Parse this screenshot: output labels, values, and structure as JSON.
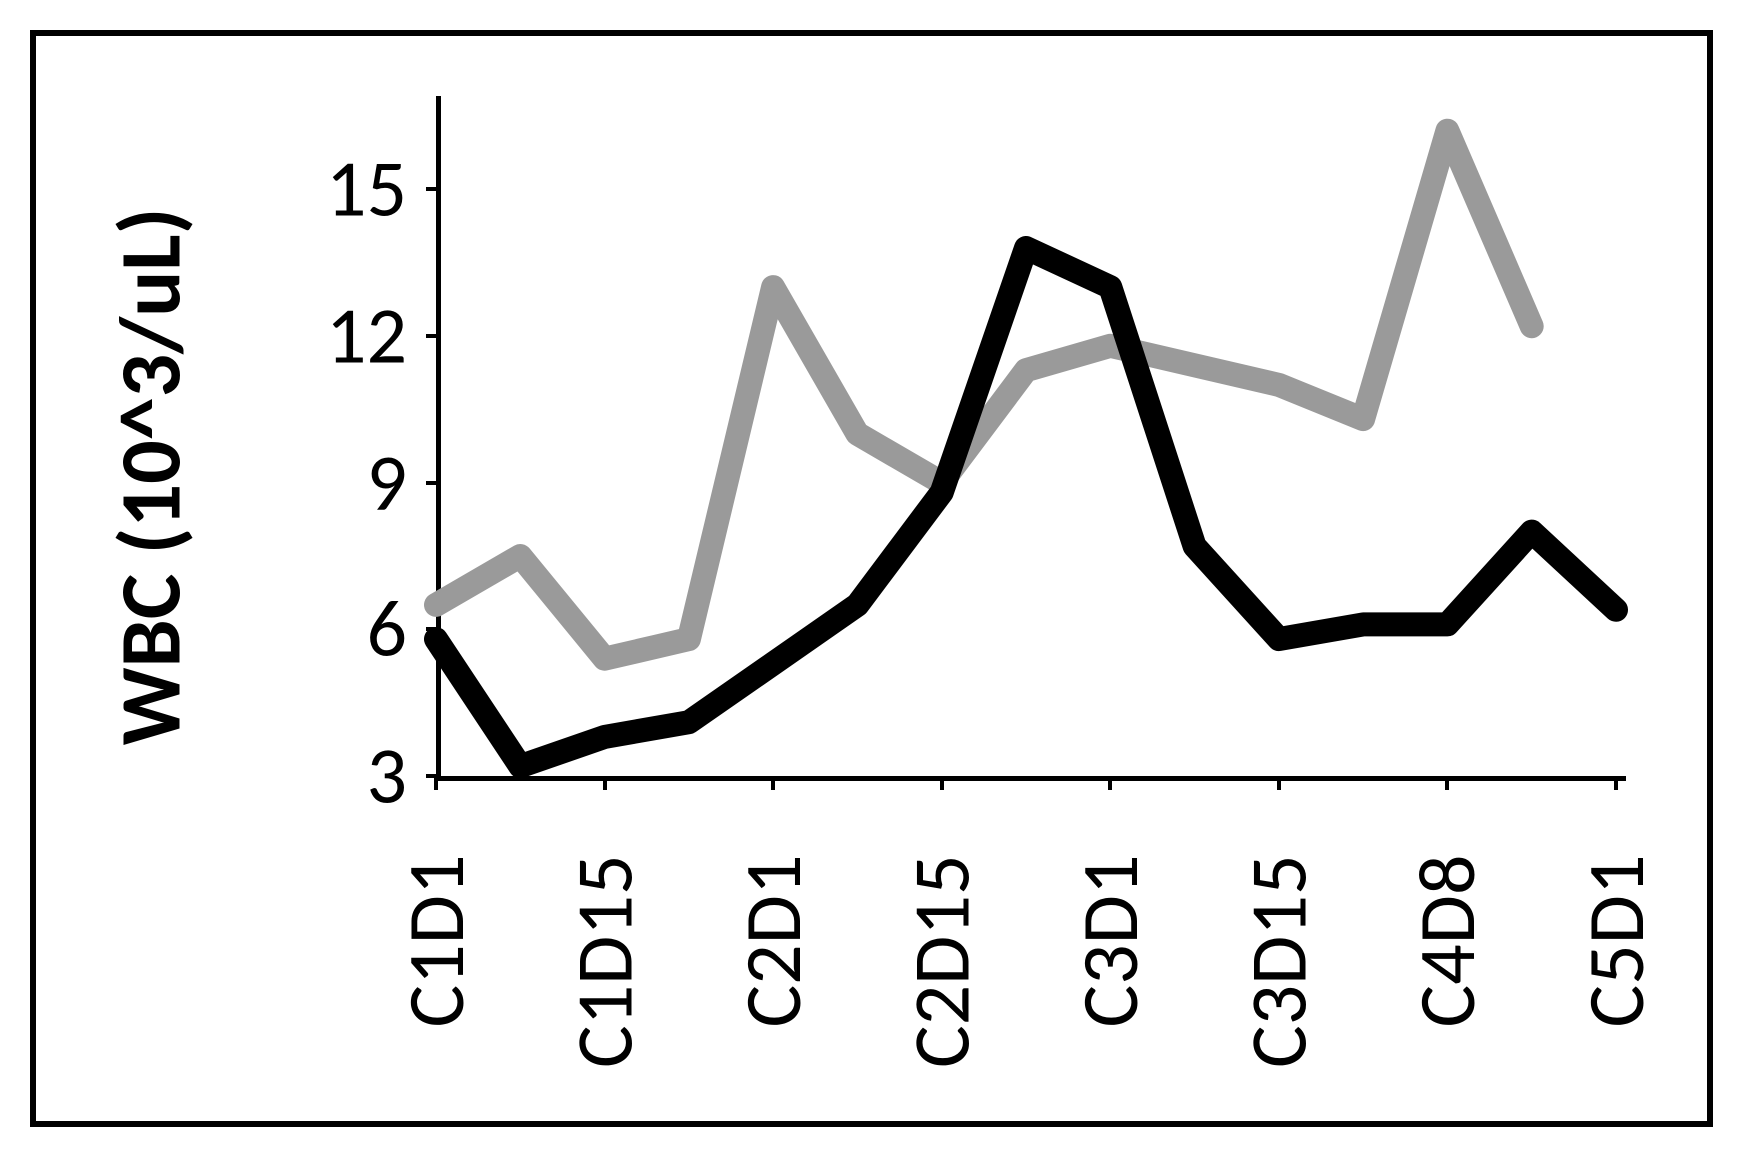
{
  "chart": {
    "type": "line",
    "y_axis": {
      "title": "WBC (10^3/uL)",
      "title_fontsize": 86,
      "title_fontweight": 700,
      "min": 3,
      "max": 16.5,
      "ticks": [
        3,
        6,
        9,
        12,
        15
      ],
      "tick_fontsize": 80
    },
    "x_axis": {
      "categories": [
        "C1D1",
        "",
        "C1D15",
        "",
        "C2D1",
        "",
        "C2D15",
        "",
        "C3D1",
        "",
        "C3D15",
        "",
        "C4D8",
        "",
        "C5D1"
      ],
      "visible_labels": [
        "C1D1",
        "C1D15",
        "C2D1",
        "C2D15",
        "C3D1",
        "C3D15",
        "C4D8",
        "C5D1"
      ],
      "tick_fontsize": 80,
      "label_rotation": -90
    },
    "series": [
      {
        "name": "series-black",
        "color": "#000000",
        "line_width": 24,
        "values": [
          5.8,
          3.2,
          3.8,
          4.1,
          5.3,
          6.5,
          8.8,
          13.8,
          13.0,
          7.7,
          5.8,
          6.1,
          6.1,
          8.0,
          6.4
        ]
      },
      {
        "name": "series-gray",
        "color": "#9a9a9a",
        "line_width": 24,
        "values": [
          6.5,
          7.5,
          5.4,
          5.8,
          13.0,
          10.0,
          9.0,
          11.3,
          11.8,
          11.4,
          11.0,
          10.3,
          16.2,
          12.2,
          null
        ]
      }
    ],
    "plot": {
      "background_color": "#ffffff",
      "axis_color": "#000000",
      "axis_width": 5
    },
    "frame": {
      "border_color": "#000000",
      "border_width": 6
    }
  }
}
